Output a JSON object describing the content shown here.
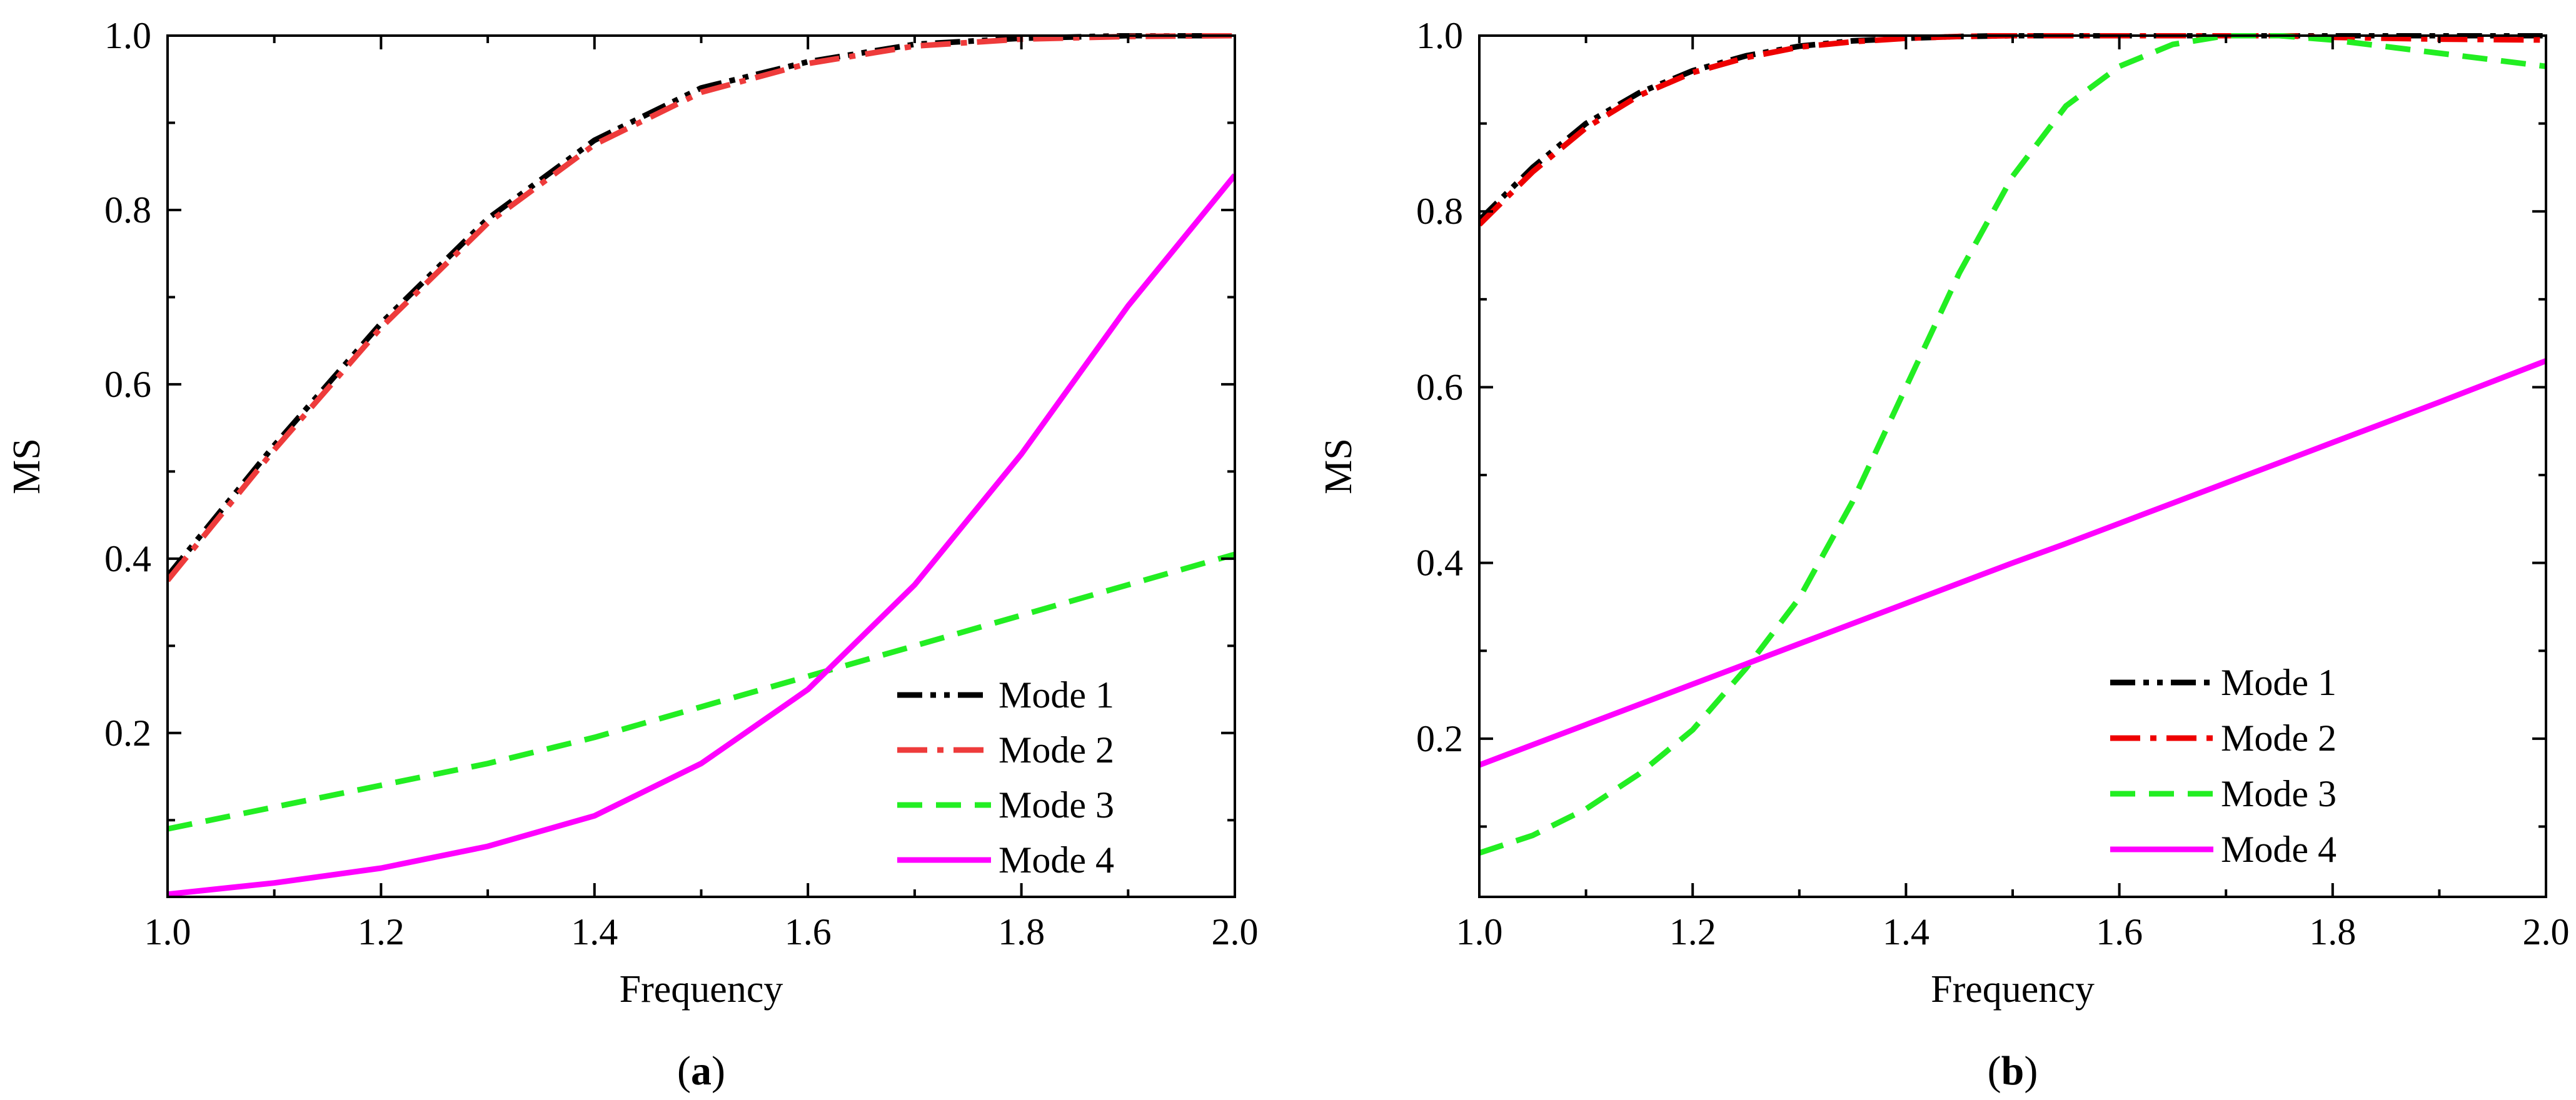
{
  "chart_data": [
    {
      "type": "line",
      "panel_label": "a",
      "title": "",
      "xlabel": "Frequency",
      "ylabel": "MS",
      "xlim": [
        1.0,
        2.0
      ],
      "ylim": [
        0.012,
        1.0
      ],
      "x_ticks": [
        1.0,
        1.2,
        1.4,
        1.6,
        1.8,
        2.0
      ],
      "x_tick_labels": [
        "1.0",
        "1.2",
        "1.4",
        "1.6",
        "1.8",
        "2.0"
      ],
      "y_ticks": [
        0.2,
        0.4,
        0.6,
        0.8,
        1.0
      ],
      "y_tick_labels": [
        "0.2",
        "0.4",
        "0.6",
        "0.8",
        "1.0"
      ],
      "legend_position": "lower-right",
      "x": [
        1.0,
        1.1,
        1.2,
        1.3,
        1.4,
        1.5,
        1.6,
        1.7,
        1.8,
        1.9,
        2.0
      ],
      "series": [
        {
          "name": "Mode 1",
          "color": "#000000",
          "style": "dash-dot-dot",
          "values": [
            0.38,
            0.53,
            0.67,
            0.79,
            0.88,
            0.94,
            0.97,
            0.99,
            0.997,
            1.0,
            1.0
          ]
        },
        {
          "name": "Mode 2",
          "color": "#ee3b3b",
          "style": "dash-dot",
          "values": [
            0.375,
            0.525,
            0.665,
            0.785,
            0.875,
            0.935,
            0.968,
            0.988,
            0.996,
            0.999,
            1.0
          ]
        },
        {
          "name": "Mode 3",
          "color": "#22ee22",
          "style": "dash",
          "values": [
            0.09,
            0.115,
            0.14,
            0.165,
            0.195,
            0.23,
            0.265,
            0.3,
            0.335,
            0.37,
            0.405
          ]
        },
        {
          "name": "Mode 4",
          "color": "#ff00ff",
          "style": "solid",
          "values": [
            0.015,
            0.028,
            0.045,
            0.07,
            0.105,
            0.165,
            0.25,
            0.37,
            0.52,
            0.69,
            0.84
          ]
        }
      ]
    },
    {
      "type": "line",
      "panel_label": "b",
      "title": "",
      "xlabel": "Frequency",
      "ylabel": "MS",
      "xlim": [
        1.0,
        2.0
      ],
      "ylim": [
        0.02,
        1.0
      ],
      "x_ticks": [
        1.0,
        1.2,
        1.4,
        1.6,
        1.8,
        2.0
      ],
      "x_tick_labels": [
        "1.0",
        "1.2",
        "1.4",
        "1.6",
        "1.8",
        "2.0"
      ],
      "y_ticks": [
        0.2,
        0.4,
        0.6,
        0.8,
        1.0
      ],
      "y_tick_labels": [
        "0.2",
        "0.4",
        "0.6",
        "0.8",
        "1.0"
      ],
      "legend_position": "lower-right",
      "x": [
        1.0,
        1.05,
        1.1,
        1.15,
        1.2,
        1.25,
        1.3,
        1.35,
        1.4,
        1.45,
        1.5,
        1.55,
        1.6,
        1.65,
        1.7,
        1.75,
        1.8,
        1.9,
        2.0
      ],
      "series": [
        {
          "name": "Mode 1",
          "color": "#000000",
          "style": "dash-dot-dot",
          "values": [
            0.79,
            0.85,
            0.9,
            0.935,
            0.96,
            0.977,
            0.988,
            0.994,
            0.997,
            0.999,
            1.0,
            1.0,
            1.0,
            1.0,
            1.0,
            1.0,
            1.0,
            1.0,
            1.0
          ]
        },
        {
          "name": "Mode 2",
          "color": "#ee0000",
          "style": "dash-dot",
          "values": [
            0.785,
            0.845,
            0.895,
            0.932,
            0.958,
            0.975,
            0.987,
            0.993,
            0.997,
            0.999,
            1.0,
            1.0,
            1.0,
            1.0,
            1.0,
            1.0,
            0.998,
            0.996,
            0.995
          ]
        },
        {
          "name": "Mode 3",
          "color": "#22ee22",
          "style": "dash",
          "values": [
            0.07,
            0.09,
            0.12,
            0.16,
            0.21,
            0.28,
            0.36,
            0.47,
            0.6,
            0.73,
            0.84,
            0.92,
            0.965,
            0.99,
            1.0,
            1.0,
            0.995,
            0.98,
            0.965
          ]
        },
        {
          "name": "Mode 4",
          "color": "#ff00ff",
          "style": "solid",
          "values": [
            0.17,
            0.193,
            0.216,
            0.239,
            0.262,
            0.285,
            0.308,
            0.331,
            0.354,
            0.377,
            0.4,
            0.422,
            0.445,
            0.468,
            0.491,
            0.514,
            0.537,
            0.583,
            0.63
          ]
        }
      ]
    }
  ]
}
